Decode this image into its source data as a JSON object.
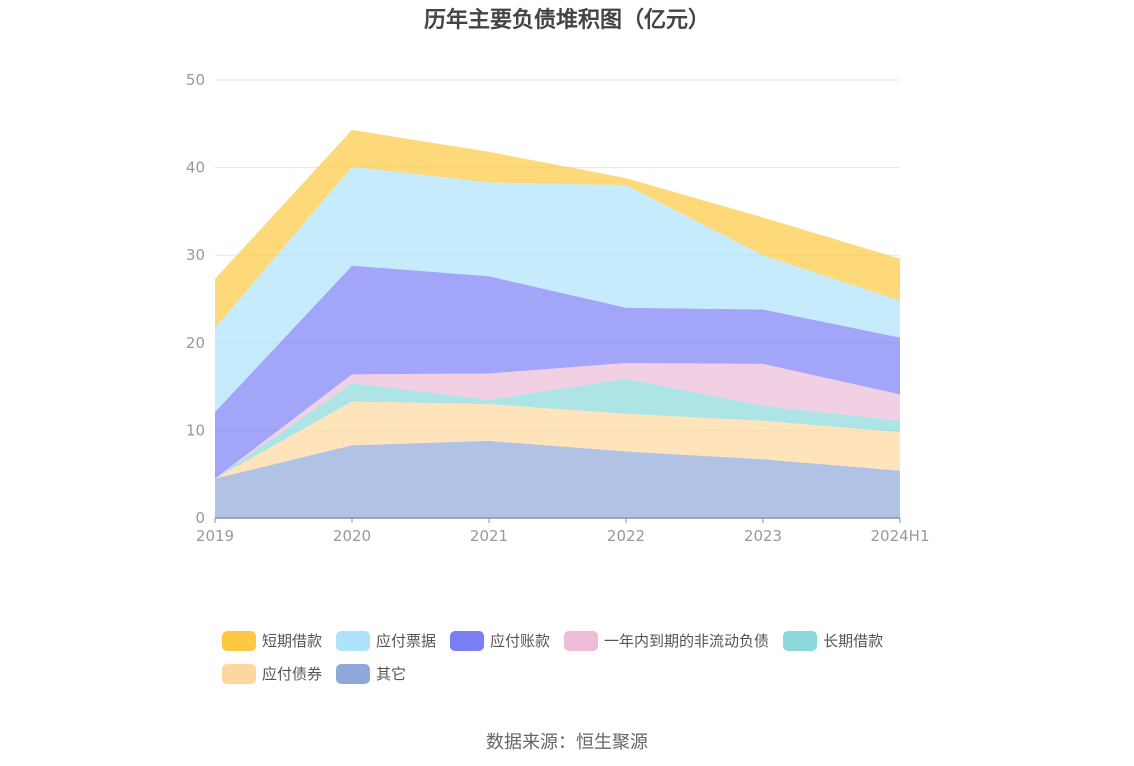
{
  "title": "历年主要负债堆积图（亿元）",
  "source": "数据来源：恒生聚源",
  "chart_data": {
    "type": "area",
    "stacked": true,
    "categories": [
      "2019",
      "2020",
      "2021",
      "2022",
      "2023",
      "2024H1"
    ],
    "ylim": [
      0,
      50
    ],
    "yticks": [
      "0",
      "10",
      "20",
      "30",
      "40",
      "50"
    ],
    "grid": true,
    "legend_position": "bottom",
    "series": [
      {
        "name": "其它",
        "color": "#8ea9d9",
        "values": [
          4.5,
          8.3,
          8.8,
          7.6,
          6.7,
          5.4
        ]
      },
      {
        "name": "应付债券",
        "color": "#fdd79e",
        "values": [
          0,
          5.0,
          4.2,
          4.3,
          4.4,
          4.4
        ]
      },
      {
        "name": "长期借款",
        "color": "#8ad8da",
        "values": [
          0,
          2.1,
          0.5,
          4.0,
          1.7,
          1.3
        ]
      },
      {
        "name": "一年内到期的非流动负债",
        "color": "#ecbcd9",
        "values": [
          0,
          1.0,
          3.0,
          1.8,
          4.8,
          3.0
        ]
      },
      {
        "name": "应付账款",
        "color": "#7b7ff5",
        "values": [
          7.6,
          12.4,
          11.1,
          6.3,
          6.2,
          6.5
        ]
      },
      {
        "name": "应付票据",
        "color": "#aee3fb",
        "values": [
          9.6,
          11.3,
          10.7,
          14.0,
          6.2,
          4.2
        ]
      },
      {
        "name": "短期借款",
        "color": "#fec942",
        "values": [
          5.6,
          4.2,
          3.5,
          0.8,
          4.3,
          4.8
        ]
      }
    ],
    "legend_rows": [
      [
        "短期借款",
        "应付票据",
        "应付账款",
        "一年内到期的非流动负债",
        "长期借款"
      ],
      [
        "应付债券",
        "其它"
      ]
    ]
  }
}
